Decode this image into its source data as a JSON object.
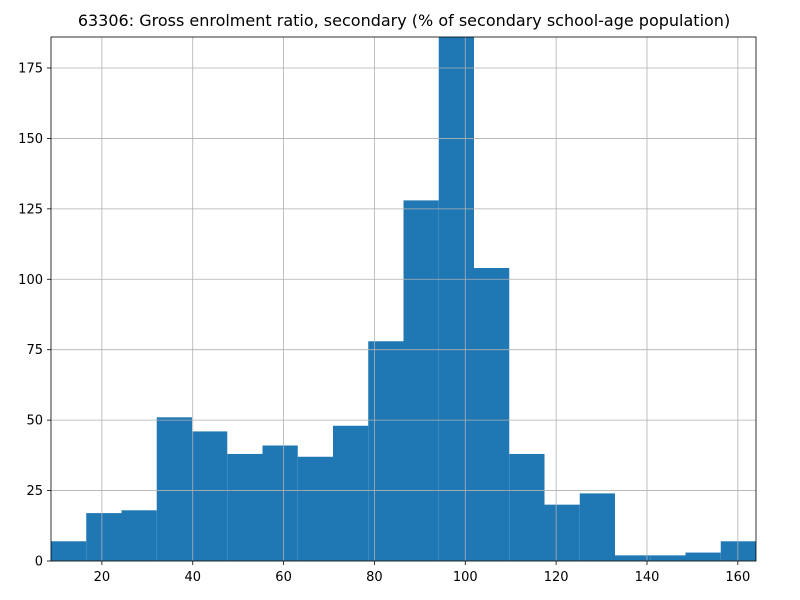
{
  "chart_data": {
    "type": "bar",
    "title": "63306: Gross enrolment ratio, secondary (% of secondary school-age population)",
    "xlabel": "",
    "ylabel": "",
    "xlim": [
      8.8,
      164.0
    ],
    "ylim": [
      0,
      186
    ],
    "grid": true,
    "bar_color": "#1f77b4",
    "bins": [
      {
        "x0": 8.8,
        "x1": 16.56,
        "count": 7
      },
      {
        "x0": 16.56,
        "x1": 24.32,
        "count": 17
      },
      {
        "x0": 24.32,
        "x1": 32.08,
        "count": 18
      },
      {
        "x0": 32.08,
        "x1": 39.84,
        "count": 51
      },
      {
        "x0": 39.84,
        "x1": 47.6,
        "count": 46
      },
      {
        "x0": 47.6,
        "x1": 55.36,
        "count": 38
      },
      {
        "x0": 55.36,
        "x1": 63.12,
        "count": 41
      },
      {
        "x0": 63.12,
        "x1": 70.88,
        "count": 37
      },
      {
        "x0": 70.88,
        "x1": 78.64,
        "count": 48
      },
      {
        "x0": 78.64,
        "x1": 86.4,
        "count": 78
      },
      {
        "x0": 86.4,
        "x1": 94.16,
        "count": 128
      },
      {
        "x0": 94.16,
        "x1": 101.92,
        "count": 186
      },
      {
        "x0": 101.92,
        "x1": 109.68,
        "count": 104
      },
      {
        "x0": 109.68,
        "x1": 117.44,
        "count": 38
      },
      {
        "x0": 117.44,
        "x1": 125.2,
        "count": 20
      },
      {
        "x0": 125.2,
        "x1": 132.96,
        "count": 24
      },
      {
        "x0": 132.96,
        "x1": 140.72,
        "count": 2
      },
      {
        "x0": 140.72,
        "x1": 148.48,
        "count": 2
      },
      {
        "x0": 148.48,
        "x1": 156.24,
        "count": 3
      },
      {
        "x0": 156.24,
        "x1": 164.0,
        "count": 7
      }
    ],
    "x_ticks": [
      20,
      40,
      60,
      80,
      100,
      120,
      140,
      160
    ],
    "y_ticks": [
      0,
      25,
      50,
      75,
      100,
      125,
      150,
      175
    ]
  }
}
